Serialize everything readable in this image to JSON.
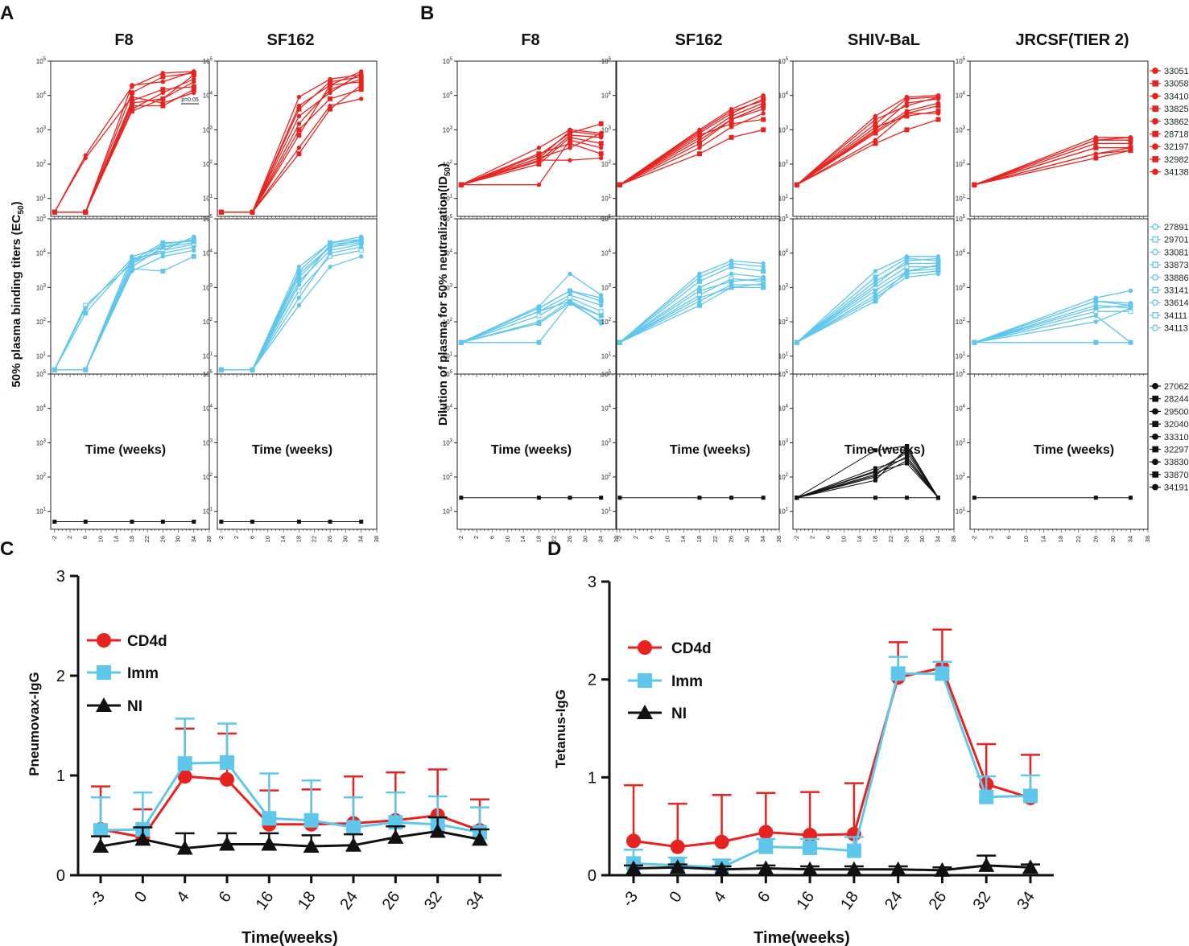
{
  "colors": {
    "cd4d": "#e8231f",
    "imm": "#5fc6ec",
    "ni": "#111111",
    "axis": "#111111"
  },
  "panels": {
    "A": {
      "letter": "A",
      "ylabel": "50% plasma binding titers (EC",
      "ylabel_sub": "50",
      "ylabel_end": ")",
      "xlabel": "Time (weeks)"
    },
    "B": {
      "letter": "B",
      "ylabel": "Dilution of plasma for 50% neutralization(ID",
      "ylabel_sub": "50",
      "ylabel_end": ")",
      "xlabel": "Time (weeks)"
    },
    "C": {
      "letter": "C"
    },
    "D": {
      "letter": "D"
    }
  },
  "small_axes": {
    "x_ticks": [
      "-2",
      "2",
      "6",
      "10",
      "14",
      "18",
      "22",
      "26",
      "30",
      "34",
      "38"
    ],
    "y_ticks": [
      "10",
      "10",
      "10",
      "10",
      "10"
    ],
    "y_exps": [
      "1",
      "2",
      "3",
      "4",
      "5"
    ],
    "significance_label": "p=0.05"
  },
  "legends": {
    "CD4d": [
      "33051",
      "33058",
      "33410",
      "33825",
      "33862",
      "28718",
      "32197",
      "32982",
      "34138"
    ],
    "Imm": [
      "27891",
      "29701",
      "33081",
      "33873",
      "33886",
      "33141",
      "33614",
      "34111",
      "34113"
    ],
    "NI": [
      "27062",
      "28244",
      "29500",
      "32040",
      "33310",
      "32297",
      "33830",
      "33870",
      "34191"
    ]
  },
  "chart_data": [
    {
      "panel": "A-F8",
      "type": "line",
      "title": "F8",
      "yscale": "log",
      "ylim": [
        3,
        100000
      ],
      "xlim": [
        -3,
        38
      ],
      "ylabel": "50% plasma binding titers (EC50)",
      "xlabel": "Time (weeks)",
      "x": [
        -2,
        6,
        18,
        26,
        34
      ],
      "groups": {
        "CD4d": [
          [
            4,
            4,
            20000,
            25000,
            50000
          ],
          [
            4,
            4,
            12000,
            35000,
            45000
          ],
          [
            4,
            4,
            6000,
            8000,
            25000
          ],
          [
            4,
            4,
            3500,
            8000,
            40000
          ],
          [
            4,
            150,
            9000,
            6000,
            12000
          ],
          [
            4,
            4,
            5000,
            5000,
            15000
          ],
          [
            4,
            180,
            18000,
            45000,
            50000
          ],
          [
            4,
            4,
            7000,
            15000,
            18000
          ],
          [
            4,
            4,
            4000,
            12000,
            30000
          ]
        ],
        "Imm": [
          [
            4,
            4,
            6000,
            12000,
            30000
          ],
          [
            4,
            4,
            3500,
            3000,
            8000
          ],
          [
            4,
            4,
            8000,
            15000,
            20000
          ],
          [
            4,
            300,
            5000,
            12000,
            18000
          ],
          [
            4,
            250,
            7000,
            10000,
            15000
          ],
          [
            4,
            4,
            4000,
            15000,
            25000
          ],
          [
            4,
            4,
            3000,
            8000,
            12000
          ],
          [
            4,
            180,
            6000,
            20000,
            22000
          ],
          [
            4,
            4,
            5000,
            18000,
            25000
          ]
        ],
        "NI": [
          [
            5,
            5,
            5,
            5,
            5
          ]
        ]
      }
    },
    {
      "panel": "A-SF162",
      "type": "line",
      "title": "SF162",
      "yscale": "log",
      "ylim": [
        3,
        100000
      ],
      "xlim": [
        -3,
        38
      ],
      "xlabel": "Time (weeks)",
      "x": [
        -2,
        6,
        18,
        26,
        34
      ],
      "groups": {
        "CD4d": [
          [
            4,
            4,
            9000,
            30000,
            40000
          ],
          [
            4,
            4,
            4000,
            25000,
            35000
          ],
          [
            4,
            4,
            1500,
            15000,
            30000
          ],
          [
            4,
            4,
            700,
            20000,
            25000
          ],
          [
            4,
            4,
            300,
            5000,
            8000
          ],
          [
            4,
            4,
            200,
            4000,
            20000
          ],
          [
            4,
            4,
            2500,
            12000,
            45000
          ],
          [
            4,
            4,
            1000,
            8000,
            15000
          ],
          [
            4,
            4,
            5000,
            20000,
            50000
          ]
        ],
        "Imm": [
          [
            4,
            4,
            4000,
            20000,
            30000
          ],
          [
            4,
            4,
            2500,
            15000,
            25000
          ],
          [
            4,
            4,
            1500,
            12000,
            18000
          ],
          [
            4,
            4,
            800,
            8000,
            12000
          ],
          [
            4,
            4,
            300,
            4000,
            8000
          ],
          [
            4,
            4,
            3000,
            20000,
            25000
          ],
          [
            4,
            4,
            500,
            10000,
            15000
          ],
          [
            4,
            4,
            2000,
            15000,
            20000
          ],
          [
            4,
            4,
            1200,
            18000,
            22000
          ]
        ],
        "NI": [
          [
            5,
            5,
            5,
            5,
            5
          ]
        ]
      }
    },
    {
      "panel": "B-F8",
      "type": "line",
      "title": "F8",
      "yscale": "log",
      "ylim": [
        3,
        100000
      ],
      "xlim": [
        -3,
        38
      ],
      "ylabel": "Dilution of plasma for 50% neutralization(ID50)",
      "xlabel": "Time (weeks)",
      "x": [
        -2,
        18,
        26,
        34
      ],
      "groups": {
        "CD4d": [
          [
            25,
            300,
            1000,
            800
          ],
          [
            25,
            150,
            900,
            700
          ],
          [
            25,
            120,
            700,
            600
          ],
          [
            25,
            100,
            600,
            400
          ],
          [
            25,
            25,
            500,
            300
          ],
          [
            25,
            200,
            400,
            200
          ],
          [
            25,
            130,
            130,
            150
          ],
          [
            25,
            180,
            800,
            1500
          ],
          [
            25,
            150,
            300,
            800
          ]
        ],
        "Imm": [
          [
            25,
            280,
            2500,
            600
          ],
          [
            25,
            250,
            800,
            400
          ],
          [
            25,
            200,
            600,
            300
          ],
          [
            25,
            150,
            500,
            200
          ],
          [
            25,
            100,
            400,
            150
          ],
          [
            25,
            25,
            350,
            100
          ],
          [
            25,
            200,
            400,
            90
          ],
          [
            25,
            90,
            350,
            150
          ],
          [
            25,
            250,
            800,
            500
          ]
        ],
        "NI": [
          [
            25,
            25,
            25,
            25
          ]
        ]
      }
    },
    {
      "panel": "B-SF162",
      "type": "line",
      "title": "SF162",
      "yscale": "log",
      "ylim": [
        3,
        100000
      ],
      "xlim": [
        -3,
        38
      ],
      "xlabel": "Time (weeks)",
      "x": [
        -2,
        18,
        26,
        34
      ],
      "groups": {
        "CD4d": [
          [
            25,
            1000,
            4000,
            10000
          ],
          [
            25,
            800,
            3000,
            8000
          ],
          [
            25,
            600,
            2500,
            6000
          ],
          [
            25,
            400,
            2000,
            5000
          ],
          [
            25,
            300,
            1200,
            3000
          ],
          [
            25,
            200,
            600,
            1000
          ],
          [
            25,
            900,
            3500,
            7000
          ],
          [
            25,
            700,
            1500,
            2000
          ],
          [
            25,
            500,
            2000,
            4000
          ]
        ],
        "Imm": [
          [
            25,
            2500,
            6000,
            5000
          ],
          [
            25,
            1500,
            4000,
            3000
          ],
          [
            25,
            1000,
            2500,
            2000
          ],
          [
            25,
            600,
            1800,
            1500
          ],
          [
            25,
            400,
            1200,
            1200
          ],
          [
            25,
            300,
            1000,
            1000
          ],
          [
            25,
            2000,
            5000,
            4000
          ],
          [
            25,
            800,
            1500,
            1800
          ],
          [
            25,
            500,
            1000,
            1300
          ]
        ],
        "NI": [
          [
            25,
            25,
            25,
            25
          ]
        ]
      }
    },
    {
      "panel": "B-SHIV-BaL",
      "type": "line",
      "title": "SHIV-BaL",
      "yscale": "log",
      "ylim": [
        3,
        100000
      ],
      "xlim": [
        -3,
        38
      ],
      "xlabel": "Time (weeks)",
      "x": [
        -2,
        18,
        26,
        34
      ],
      "groups": {
        "CD4d": [
          [
            25,
            2500,
            9000,
            10000
          ],
          [
            25,
            1500,
            8000,
            9000
          ],
          [
            25,
            1000,
            6000,
            8000
          ],
          [
            25,
            800,
            3000,
            5000
          ],
          [
            25,
            500,
            3000,
            3000
          ],
          [
            25,
            400,
            1000,
            2000
          ],
          [
            25,
            2000,
            5000,
            9000
          ],
          [
            25,
            1200,
            2500,
            3500
          ],
          [
            25,
            900,
            3500,
            6000
          ]
        ],
        "Imm": [
          [
            25,
            3000,
            8000,
            8000
          ],
          [
            25,
            2000,
            7000,
            6000
          ],
          [
            25,
            1500,
            5000,
            5000
          ],
          [
            25,
            1000,
            4000,
            4000
          ],
          [
            25,
            800,
            3000,
            3500
          ],
          [
            25,
            600,
            2500,
            3000
          ],
          [
            25,
            500,
            2000,
            2500
          ],
          [
            25,
            400,
            3000,
            4500
          ],
          [
            25,
            1200,
            6000,
            7000
          ]
        ],
        "NI": [
          [
            25,
            150,
            500,
            25
          ],
          [
            25,
            120,
            400,
            25
          ],
          [
            25,
            100,
            300,
            25
          ],
          [
            25,
            600,
            800,
            25
          ],
          [
            25,
            25,
            25,
            25
          ],
          [
            25,
            80,
            700,
            25
          ],
          [
            25,
            180,
            350,
            25
          ],
          [
            25,
            140,
            250,
            25
          ],
          [
            25,
            110,
            600,
            25
          ]
        ]
      }
    },
    {
      "panel": "B-JRCSF",
      "type": "line",
      "title": "JRCSF(TIER 2)",
      "yscale": "log",
      "ylim": [
        3,
        100000
      ],
      "xlim": [
        -3,
        38
      ],
      "xlabel": "Time (weeks)",
      "x": [
        -2,
        26,
        34
      ],
      "groups": {
        "CD4d": [
          [
            25,
            600,
            600
          ],
          [
            25,
            500,
            500
          ],
          [
            25,
            400,
            400
          ],
          [
            25,
            300,
            300
          ],
          [
            25,
            200,
            300
          ],
          [
            25,
            150,
            250
          ],
          [
            25,
            500,
            600
          ],
          [
            25,
            300,
            300
          ],
          [
            25,
            200,
            250
          ]
        ],
        "Imm": [
          [
            25,
            500,
            800
          ],
          [
            25,
            400,
            300
          ],
          [
            25,
            300,
            250
          ],
          [
            25,
            200,
            200
          ],
          [
            25,
            150,
            25
          ],
          [
            25,
            25,
            25
          ],
          [
            25,
            400,
            350
          ],
          [
            25,
            250,
            300
          ],
          [
            25,
            100,
            250
          ]
        ],
        "NI": [
          [
            25,
            25,
            25
          ]
        ]
      }
    },
    {
      "panel": "C",
      "type": "line",
      "title": "",
      "ylabel": "Pneumovax-IgG",
      "xlabel": "Time(weeks)",
      "categories": [
        "-3",
        "0",
        "4",
        "6",
        "16",
        "18",
        "24",
        "26",
        "32",
        "34"
      ],
      "ylim": [
        0,
        3
      ],
      "yticks": [
        "0",
        "1",
        "2",
        "3"
      ],
      "series": [
        {
          "name": "CD4d",
          "values": [
            0.46,
            0.38,
            0.99,
            0.96,
            0.51,
            0.51,
            0.52,
            0.55,
            0.6,
            0.45
          ],
          "error": [
            0.43,
            0.28,
            0.48,
            0.46,
            0.34,
            0.35,
            0.47,
            0.48,
            0.46,
            0.31
          ]
        },
        {
          "name": "Imm",
          "values": [
            0.45,
            0.46,
            1.12,
            1.13,
            0.57,
            0.55,
            0.48,
            0.53,
            0.51,
            0.43
          ],
          "error": [
            0.33,
            0.37,
            0.45,
            0.39,
            0.45,
            0.4,
            0.3,
            0.3,
            0.28,
            0.25
          ]
        },
        {
          "name": "NI",
          "values": [
            0.29,
            0.36,
            0.27,
            0.31,
            0.31,
            0.29,
            0.3,
            0.38,
            0.44,
            0.36
          ],
          "error": [
            0.1,
            0.12,
            0.15,
            0.11,
            0.11,
            0.11,
            0.11,
            0.11,
            0.14,
            0.1
          ]
        }
      ]
    },
    {
      "panel": "D",
      "type": "line",
      "title": "",
      "ylabel": "Tetanus-IgG",
      "xlabel": "Time(weeks)",
      "categories": [
        "-3",
        "0",
        "4",
        "6",
        "16",
        "18",
        "24",
        "26",
        "32",
        "34"
      ],
      "ylim": [
        0,
        3
      ],
      "yticks": [
        "0",
        "1",
        "2",
        "3"
      ],
      "series": [
        {
          "name": "CD4d",
          "values": [
            0.35,
            0.29,
            0.34,
            0.44,
            0.41,
            0.42,
            2.02,
            2.12,
            0.93,
            0.79
          ],
          "error": [
            0.57,
            0.44,
            0.48,
            0.4,
            0.44,
            0.52,
            0.36,
            0.39,
            0.41,
            0.44
          ]
        },
        {
          "name": "Imm",
          "values": [
            0.12,
            0.1,
            0.08,
            0.29,
            0.28,
            0.25,
            2.06,
            2.06,
            0.8,
            0.81
          ],
          "error": [
            0.14,
            0.08,
            0.08,
            0.08,
            0.09,
            0.14,
            0.17,
            0.12,
            0.21,
            0.21
          ]
        },
        {
          "name": "NI",
          "values": [
            0.07,
            0.08,
            0.06,
            0.07,
            0.06,
            0.06,
            0.06,
            0.05,
            0.1,
            0.08
          ],
          "error": [
            0.03,
            0.03,
            0.03,
            0.03,
            0.03,
            0.03,
            0.03,
            0.03,
            0.1,
            0.03
          ]
        }
      ]
    }
  ]
}
